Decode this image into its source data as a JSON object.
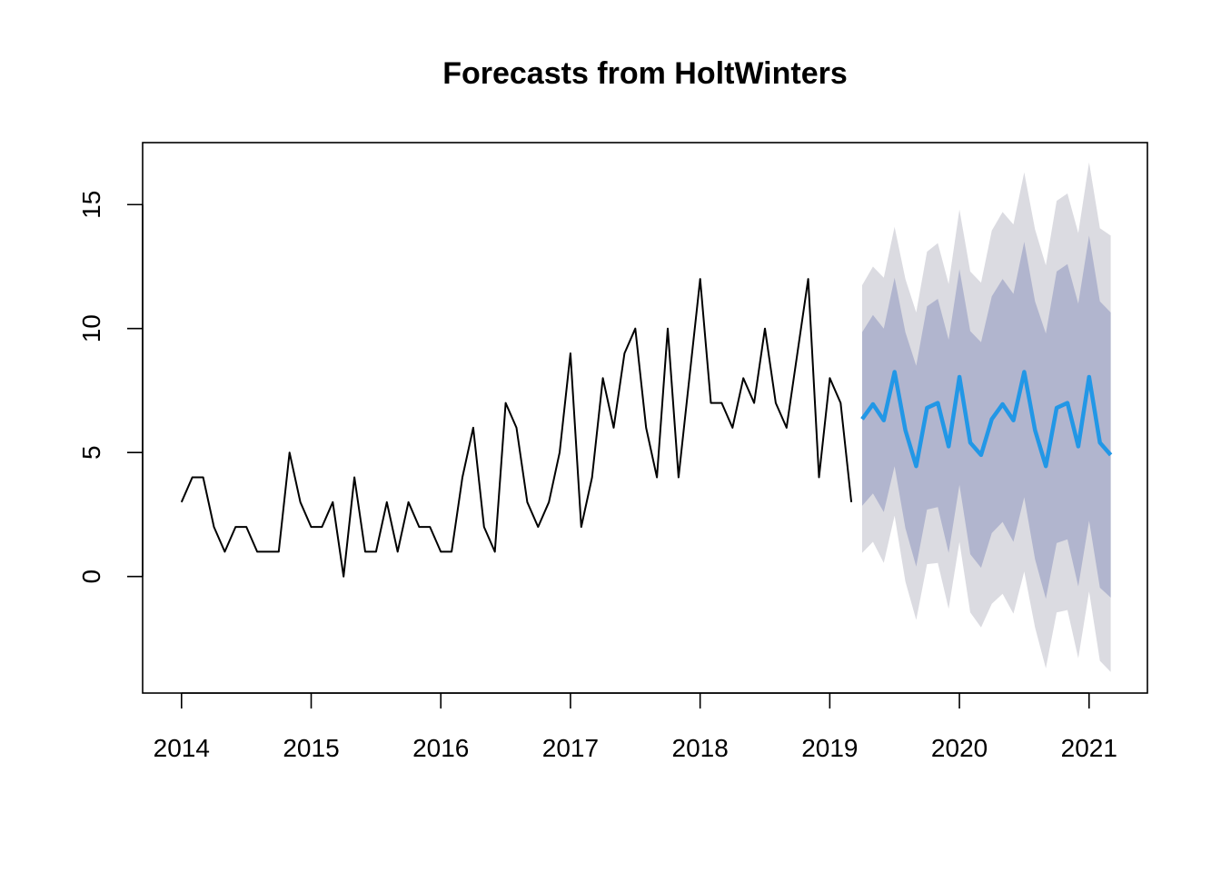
{
  "chart_data": {
    "type": "line",
    "title": "Forecasts from HoltWinters",
    "xlabel": "",
    "ylabel": "",
    "xlim": [
      2013.7,
      2021.45
    ],
    "ylim": [
      -4.7,
      17.5
    ],
    "x_ticks": [
      2014,
      2015,
      2016,
      2017,
      2018,
      2019,
      2020,
      2021
    ],
    "y_ticks": [
      0,
      5,
      10,
      15
    ],
    "grid": false,
    "legend": "none",
    "colors": {
      "observed": "#000000",
      "forecast": "#2297E6",
      "band80": "#B1B5CE",
      "band95": "#DBDBE1"
    },
    "observed": {
      "x_start": 2014.0,
      "step": 0.0833333,
      "values": [
        3,
        4,
        4,
        2,
        1,
        2,
        2,
        1,
        1,
        1,
        5,
        3,
        2,
        2,
        3,
        0,
        4,
        1,
        1,
        3,
        1,
        3,
        2,
        2,
        1,
        1,
        4,
        6,
        2,
        1,
        7,
        6,
        3,
        2,
        3,
        5,
        9,
        2,
        4,
        8,
        6,
        9,
        10,
        6,
        4,
        10,
        4,
        8,
        12,
        7,
        7,
        6,
        8,
        7,
        10,
        7,
        6,
        9,
        12,
        4,
        8,
        7,
        3
      ]
    },
    "forecast": {
      "x_start": 2019.25,
      "step": 0.0833333,
      "mean": [
        6.35,
        6.95,
        6.3,
        8.25,
        5.9,
        4.45,
        6.8,
        7.0,
        5.25,
        8.05,
        5.4,
        4.9,
        6.35,
        6.95,
        6.3,
        8.25,
        5.9,
        4.45,
        6.8,
        7.0,
        5.25,
        8.05,
        5.4,
        4.9
      ],
      "lo80": [
        2.85,
        3.35,
        2.6,
        4.45,
        1.95,
        0.4,
        2.7,
        2.8,
        0.95,
        3.7,
        0.9,
        0.35,
        1.75,
        2.2,
        1.4,
        3.2,
        0.7,
        -0.9,
        1.35,
        1.5,
        -0.4,
        2.25,
        -0.45,
        -0.85
      ],
      "hi80": [
        9.85,
        10.55,
        10.0,
        12.05,
        9.85,
        8.5,
        10.9,
        11.2,
        9.55,
        12.4,
        9.9,
        9.45,
        11.3,
        12.0,
        11.4,
        13.5,
        11.1,
        9.8,
        12.3,
        12.6,
        11.0,
        13.75,
        11.1,
        10.65
      ],
      "lo95": [
        0.95,
        1.4,
        0.55,
        2.45,
        -0.2,
        -1.75,
        0.5,
        0.55,
        -1.3,
        1.4,
        -1.45,
        -2.05,
        -1.1,
        -0.7,
        -1.5,
        0.2,
        -2.05,
        -3.7,
        -1.45,
        -1.35,
        -3.3,
        -0.6,
        -3.4,
        -3.85
      ],
      "hi95": [
        11.75,
        12.5,
        12.05,
        14.1,
        12.0,
        10.65,
        13.1,
        13.45,
        11.8,
        14.8,
        12.3,
        11.85,
        13.95,
        14.7,
        14.2,
        16.3,
        14.0,
        12.55,
        15.15,
        15.45,
        13.85,
        16.7,
        14.05,
        13.75
      ]
    }
  }
}
